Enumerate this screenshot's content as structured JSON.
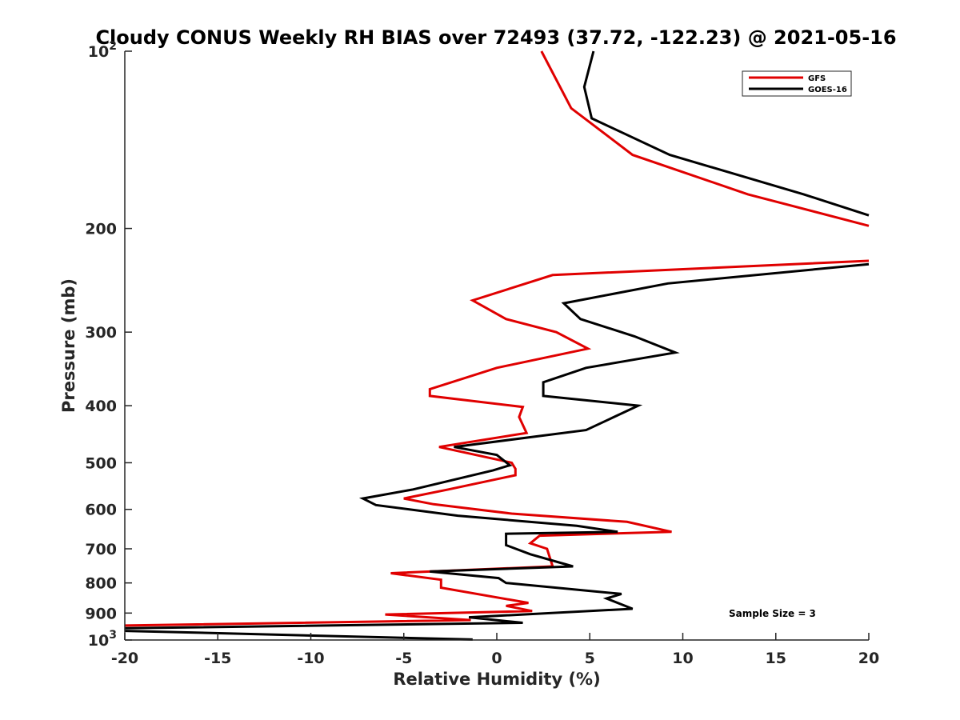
{
  "chart_data": {
    "type": "line",
    "title": "Cloudy CONUS Weekly RH BIAS over 72493 (37.72, -122.23) @ 2021-05-16",
    "xlabel": "Relative Humidity (%)",
    "ylabel": "Pressure (mb)",
    "xlim": [
      -20,
      20
    ],
    "ylim": [
      100,
      1000
    ],
    "y_scale": "log",
    "y_reversed": true,
    "grid": false,
    "x_ticks": [
      {
        "value": -20,
        "label": "-20"
      },
      {
        "value": -15,
        "label": "-15"
      },
      {
        "value": -10,
        "label": "-10"
      },
      {
        "value": -5,
        "label": "-5"
      },
      {
        "value": 0,
        "label": "0"
      },
      {
        "value": 5,
        "label": "5"
      },
      {
        "value": 10,
        "label": "10"
      },
      {
        "value": 15,
        "label": "15"
      },
      {
        "value": 20,
        "label": "20"
      }
    ],
    "y_ticks": [
      {
        "value": 100,
        "base": "10",
        "exp": "2"
      },
      {
        "value": 200,
        "base": "200",
        "exp": ""
      },
      {
        "value": 300,
        "base": "300",
        "exp": ""
      },
      {
        "value": 400,
        "base": "400",
        "exp": ""
      },
      {
        "value": 500,
        "base": "500",
        "exp": ""
      },
      {
        "value": 600,
        "base": "600",
        "exp": ""
      },
      {
        "value": 700,
        "base": "700",
        "exp": ""
      },
      {
        "value": 800,
        "base": "800",
        "exp": ""
      },
      {
        "value": 900,
        "base": "900",
        "exp": ""
      },
      {
        "value": 1000,
        "base": "10",
        "exp": "3"
      }
    ],
    "legend_position": "top-right",
    "annotation": "Sample Size = 3",
    "series": [
      {
        "name": "GFS",
        "color": "#e00000",
        "points": [
          [
            2.4,
            100
          ],
          [
            4,
            125
          ],
          [
            7.3,
            150
          ],
          [
            13.5,
            175
          ],
          [
            20,
            198
          ],
          [
            null,
            null
          ],
          [
            20,
            227
          ],
          [
            3,
            240
          ],
          [
            -1.3,
            265
          ],
          [
            0.5,
            285
          ],
          [
            3.2,
            300
          ],
          [
            4.9,
            320
          ],
          [
            0,
            345
          ],
          [
            -3.6,
            375
          ],
          [
            -3.6,
            385
          ],
          [
            1.4,
            402
          ],
          [
            1.2,
            418
          ],
          [
            1.6,
            445
          ],
          [
            -3.1,
            470
          ],
          [
            0.8,
            500
          ],
          [
            1,
            512
          ],
          [
            1,
            525
          ],
          [
            -2.6,
            555
          ],
          [
            -5,
            575
          ],
          [
            -3.4,
            588
          ],
          [
            0.8,
            610
          ],
          [
            7,
            630
          ],
          [
            9.4,
            655
          ],
          [
            2.3,
            665
          ],
          [
            1.8,
            685
          ],
          [
            2.7,
            700
          ],
          [
            3,
            750
          ],
          [
            -5.7,
            770
          ],
          [
            -3,
            790
          ],
          [
            -3,
            815
          ],
          [
            1.7,
            865
          ],
          [
            0.5,
            875
          ],
          [
            1.9,
            893
          ],
          [
            -6,
            905
          ],
          [
            -1.4,
            925
          ],
          [
            -20,
            945
          ]
        ]
      },
      {
        "name": "GOES-16",
        "color": "#000000",
        "points": [
          [
            5.2,
            100
          ],
          [
            4.7,
            115
          ],
          [
            5.1,
            130
          ],
          [
            9.3,
            150
          ],
          [
            16.5,
            175
          ],
          [
            20,
            190
          ],
          [
            null,
            null
          ],
          [
            20,
            230
          ],
          [
            9.2,
            248
          ],
          [
            3.6,
            268
          ],
          [
            4.5,
            285
          ],
          [
            7.4,
            305
          ],
          [
            9.6,
            325
          ],
          [
            4.8,
            345
          ],
          [
            2.5,
            365
          ],
          [
            2.5,
            385
          ],
          [
            7.6,
            400
          ],
          [
            4.8,
            440
          ],
          [
            -2.3,
            470
          ],
          [
            0,
            485
          ],
          [
            0.7,
            505
          ],
          [
            -0.2,
            515
          ],
          [
            -4.5,
            555
          ],
          [
            -7.2,
            575
          ],
          [
            -6.5,
            590
          ],
          [
            -2.1,
            615
          ],
          [
            4.3,
            640
          ],
          [
            6.5,
            655
          ],
          [
            0.5,
            660
          ],
          [
            0.5,
            690
          ],
          [
            1.8,
            715
          ],
          [
            4.1,
            750
          ],
          [
            -3.6,
            765
          ],
          [
            0.1,
            785
          ],
          [
            0.5,
            800
          ],
          [
            6.7,
            835
          ],
          [
            5.9,
            850
          ],
          [
            7.3,
            885
          ],
          [
            -1.5,
            915
          ],
          [
            1.4,
            935
          ],
          [
            -20,
            955
          ],
          [
            null,
            null
          ],
          [
            -20,
            965
          ],
          [
            -1.3,
            998
          ]
        ]
      }
    ]
  }
}
